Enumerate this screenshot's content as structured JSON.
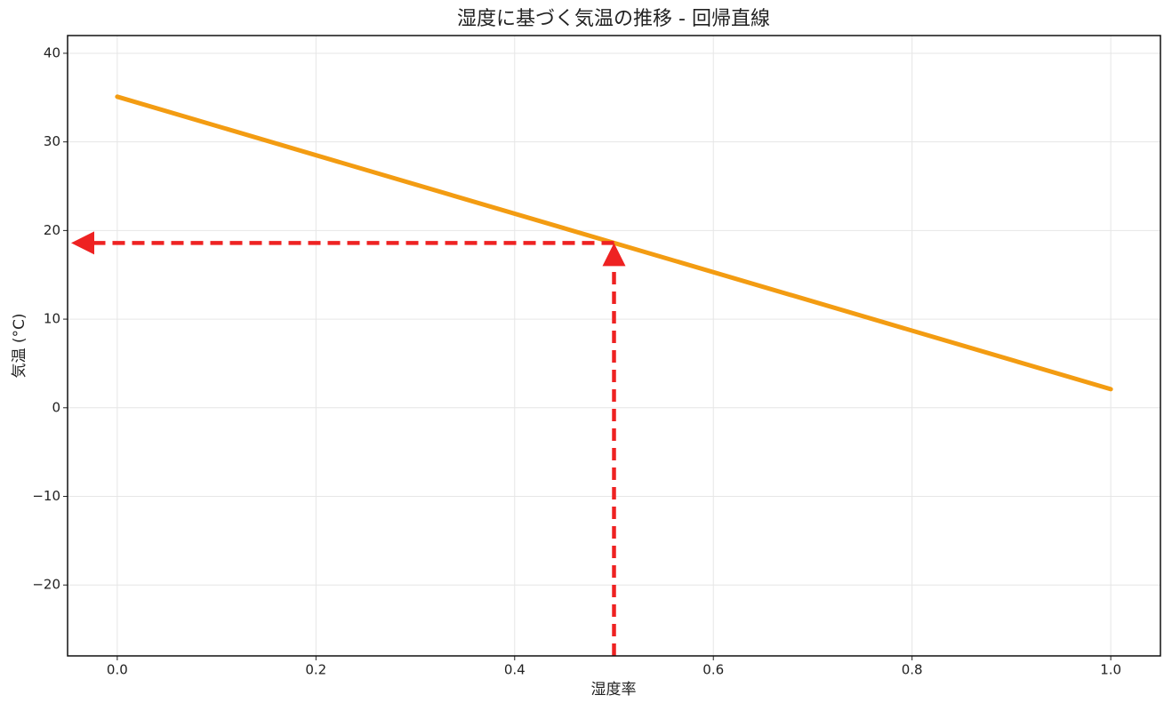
{
  "chart_data": {
    "type": "line",
    "title": "湿度に基づく気温の推移 - 回帰直線",
    "xlabel": "湿度率",
    "ylabel": "気温 (°C)",
    "x": [
      0,
      1
    ],
    "series": [
      {
        "color": "#f39c12",
        "values": [
          35.1,
          2.1
        ]
      }
    ],
    "xlim": [
      -0.05,
      1.05
    ],
    "ylim": [
      -28,
      42
    ],
    "xticks": [
      {
        "value": 0,
        "label": "0.0"
      },
      0.2,
      0.4,
      0.6,
      0.8,
      {
        "value": 1,
        "label": "1.0"
      }
    ],
    "yticks": [
      {
        "value": -20,
        "label": "−20"
      },
      {
        "value": -10,
        "label": "−10"
      },
      0,
      10,
      20,
      30,
      40
    ],
    "grid": true,
    "annotation": {
      "x": 0.5,
      "y": 18.6,
      "color": "#ee2222"
    }
  }
}
